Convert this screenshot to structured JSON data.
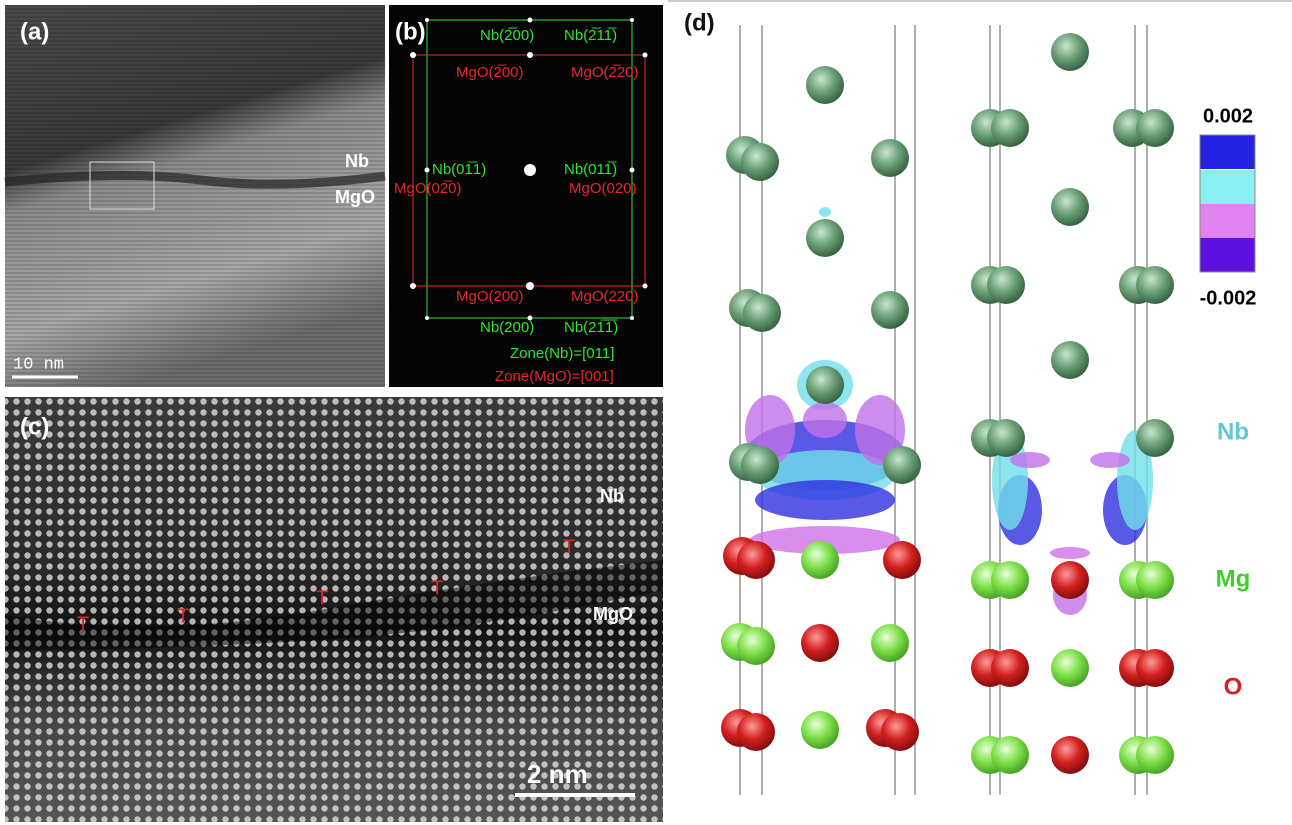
{
  "panel_a": {
    "label": "(a)",
    "upper_layer": "Nb",
    "lower_layer": "MgO",
    "scale_bar": "10 nm"
  },
  "panel_b": {
    "label": "(b)",
    "spots": [
      "Nb(2̅00)",
      "Nb(2̅11̅)",
      "MgO(2̅00)",
      "MgO(2̅20)",
      "Nb(01̅1)",
      "Nb(011̅)",
      "MgO(02̅0)",
      "MgO(020)",
      "MgO(200)",
      "MgO(220)",
      "Nb(200)",
      "Nb(21̅1̅)"
    ],
    "zone_nb": "Zone(Nb)=[011]",
    "zone_mgo": "Zone(MgO)=[001]"
  },
  "panel_c": {
    "label": "(c)",
    "upper_layer": "Nb",
    "lower_layer": "MgO",
    "dislocations": [
      "T",
      "T",
      "T",
      "T",
      "T"
    ],
    "scale_bar": "2 nm"
  },
  "panel_d": {
    "label": "(d)",
    "colorbar_max": "0.002",
    "colorbar_min": "-0.002",
    "legend": [
      "Nb",
      "Mg",
      "O"
    ]
  }
}
